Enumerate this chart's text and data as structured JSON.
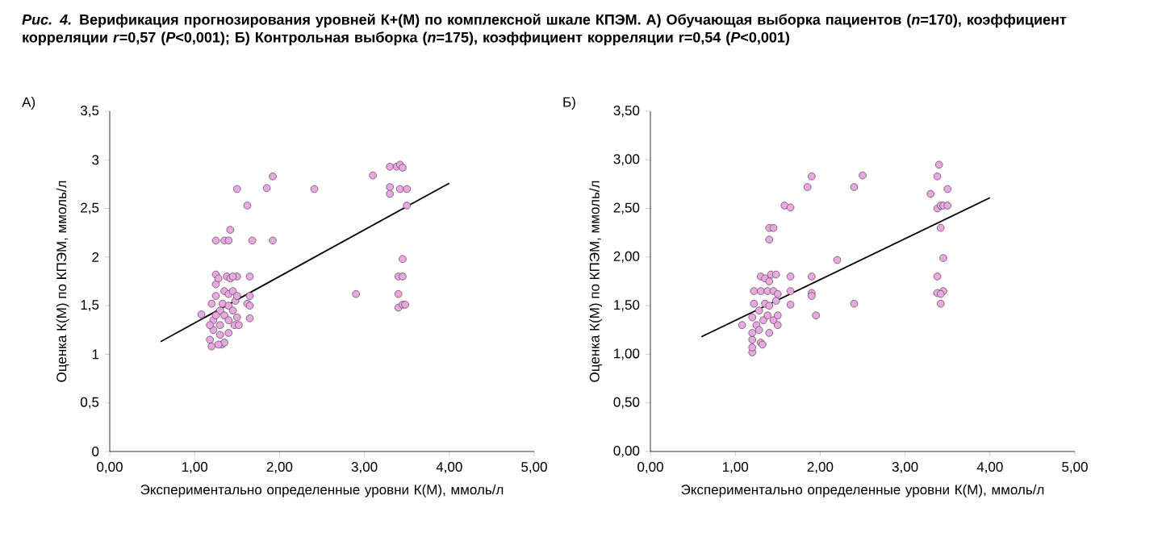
{
  "chart_data": [
    {
      "type": "scatter",
      "title": "*Рис. 4.* Верификация прогнозирования уровней К+(М) по комплексной шкале КПЭМ. А) Обучающая выборка пациентов (*n*=170), коэффициент корреляции *r*=0,57 (*P*<0,001); Б) Контрольная выборка (*n*=175), коэффициент корреляции r=0,54 (*P*<0,001)",
      "subtitle": "А)",
      "xlabel": "Экспериментально определенные уровни К(М), ммоль/л",
      "ylabel": "Оценка К(М) по КПЭМ, ммоль/л",
      "xlim": [
        0,
        5
      ],
      "ylim": [
        0,
        3.5
      ],
      "xticks": [
        {
          "value": 0,
          "label": "0,00"
        },
        {
          "value": 1,
          "label": "1,00"
        },
        {
          "value": 2,
          "label": "2,00"
        },
        {
          "value": 3,
          "label": "3,00"
        },
        {
          "value": 4,
          "label": "4,00"
        },
        {
          "value": 5,
          "label": "5,00"
        }
      ],
      "yticks": [
        0,
        {
          "value": 0.5,
          "label": "0,5"
        },
        1,
        {
          "value": 1.5,
          "label": "1,5"
        },
        2,
        {
          "value": 2.5,
          "label": "2,5"
        },
        3,
        {
          "value": 3.5,
          "label": "3,5"
        }
      ],
      "series": [
        {
          "type": "scatter",
          "marker": "circle",
          "color": "#e8a8e0",
          "x": [
            1.08,
            1.18,
            1.2,
            1.22,
            1.22,
            1.2,
            1.25,
            1.25,
            1.25,
            1.25,
            1.28,
            1.3,
            1.3,
            1.3,
            1.32,
            1.33,
            1.35,
            1.35,
            1.35,
            1.35,
            1.38,
            1.4,
            1.4,
            1.4,
            1.4,
            1.4,
            1.42,
            1.42,
            1.45,
            1.45,
            1.47,
            1.48,
            1.5,
            1.5,
            1.5,
            1.52,
            1.5,
            1.62,
            1.62,
            1.65,
            1.65,
            1.65,
            1.65,
            1.68,
            1.85,
            1.92,
            1.92,
            2.41,
            2.9,
            3.1,
            3.3,
            3.3,
            3.3,
            3.38,
            3.42,
            3.45,
            3.42,
            3.5,
            3.5,
            3.4,
            3.45,
            3.45,
            3.4,
            3.4,
            3.45,
            3.48,
            1.18,
            1.25,
            1.28,
            1.45
          ],
          "values": [
            1.41,
            1.15,
            1.08,
            1.25,
            1.35,
            1.52,
            1.6,
            1.72,
            1.82,
            2.17,
            1.78,
            1.45,
            1.3,
            1.2,
            1.1,
            1.52,
            1.65,
            1.4,
            1.12,
            2.17,
            1.8,
            1.62,
            1.5,
            1.35,
            1.22,
            2.17,
            2.28,
            1.78,
            1.65,
            1.45,
            1.3,
            1.55,
            1.8,
            1.6,
            1.38,
            1.3,
            2.7,
            1.52,
            2.53,
            1.8,
            1.6,
            1.5,
            1.37,
            2.17,
            2.71,
            2.83,
            2.17,
            2.7,
            1.62,
            2.84,
            2.93,
            2.72,
            2.65,
            2.93,
            2.95,
            2.92,
            2.7,
            2.7,
            2.53,
            1.8,
            1.8,
            1.98,
            1.62,
            1.48,
            1.51,
            1.51,
            1.3,
            1.4,
            1.1,
            1.8
          ]
        },
        {
          "type": "line",
          "marker": "none",
          "line_style": "solid",
          "color": "#000000",
          "x": [
            0.6,
            4.0
          ],
          "values": [
            1.13,
            2.76
          ]
        }
      ]
    },
    {
      "type": "scatter",
      "subtitle": "Б)",
      "xlabel": "Экспериментально определенные уровни К(М), ммоль/л",
      "ylabel": "Оценка К(М) по КПЭМ, ммоль/л",
      "xlim": [
        0,
        5
      ],
      "ylim": [
        0,
        3.5
      ],
      "xticks": [
        {
          "value": 0,
          "label": "0,00"
        },
        {
          "value": 1,
          "label": "1,00"
        },
        {
          "value": 2,
          "label": "2,00"
        },
        {
          "value": 3,
          "label": "3,00"
        },
        {
          "value": 4,
          "label": "4,00"
        },
        {
          "value": 5,
          "label": "5,00"
        }
      ],
      "yticks": [
        {
          "value": 0,
          "label": "0,00"
        },
        {
          "value": 0.5,
          "label": "0,50"
        },
        {
          "value": 1,
          "label": "1,00"
        },
        {
          "value": 1.5,
          "label": "1,50"
        },
        {
          "value": 2,
          "label": "2,00"
        },
        {
          "value": 2.5,
          "label": "2,50"
        },
        {
          "value": 3,
          "label": "3,00"
        },
        {
          "value": 3.5,
          "label": "3,50"
        }
      ],
      "series": [
        {
          "type": "scatter",
          "marker": "circle",
          "color": "#e8a8e0",
          "x": [
            1.08,
            1.2,
            1.2,
            1.2,
            1.2,
            1.2,
            1.22,
            1.22,
            1.25,
            1.28,
            1.28,
            1.3,
            1.3,
            1.3,
            1.32,
            1.33,
            1.35,
            1.35,
            1.38,
            1.38,
            1.4,
            1.4,
            1.4,
            1.42,
            1.4,
            1.4,
            1.45,
            1.45,
            1.45,
            1.48,
            1.48,
            1.5,
            1.5,
            1.5,
            1.58,
            1.65,
            1.65,
            1.65,
            1.65,
            1.85,
            1.9,
            1.9,
            1.9,
            1.9,
            1.95,
            2.2,
            2.4,
            2.4,
            2.5,
            3.3,
            3.4,
            3.38,
            3.38,
            3.42,
            3.45,
            3.5,
            3.5,
            3.42,
            3.45,
            3.38,
            3.38,
            3.45,
            3.42,
            3.42
          ],
          "values": [
            1.3,
            1.02,
            1.07,
            1.15,
            1.22,
            1.38,
            1.52,
            1.65,
            1.3,
            1.25,
            1.45,
            1.12,
            1.65,
            1.8,
            1.1,
            1.35,
            1.78,
            1.52,
            1.4,
            1.65,
            1.22,
            1.5,
            1.75,
            1.82,
            2.18,
            2.3,
            2.3,
            1.65,
            1.35,
            1.55,
            1.82,
            1.4,
            1.3,
            1.62,
            2.53,
            2.51,
            1.8,
            1.65,
            1.51,
            2.72,
            2.83,
            1.8,
            1.63,
            1.6,
            1.4,
            1.97,
            2.72,
            1.52,
            2.84,
            2.65,
            2.95,
            2.83,
            2.5,
            2.53,
            2.53,
            2.53,
            2.7,
            2.3,
            1.99,
            1.8,
            1.63,
            1.65,
            1.62,
            1.52
          ]
        },
        {
          "type": "line",
          "marker": "none",
          "line_style": "solid",
          "color": "#000000",
          "x": [
            0.6,
            4.0
          ],
          "values": [
            1.18,
            2.61
          ]
        }
      ]
    }
  ]
}
